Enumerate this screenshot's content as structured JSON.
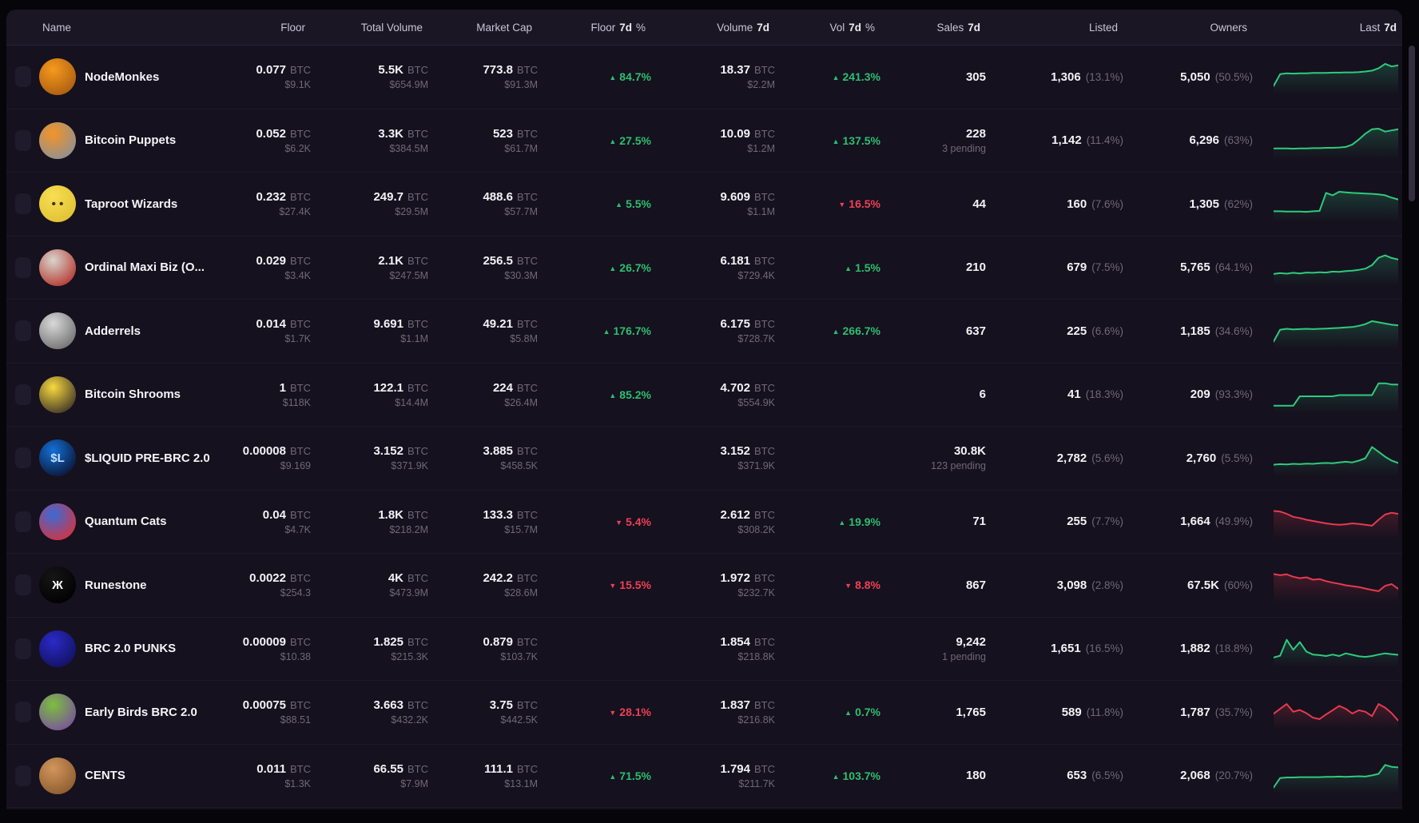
{
  "units": {
    "btc": "BTC"
  },
  "icons": {
    "up_arrow": "▲",
    "down_arrow": "▼",
    "sort": "sort-carets"
  },
  "colors": {
    "green_text": "#2dbe70",
    "red_text": "#ee4056",
    "spark_green": "#2fca7c",
    "spark_red": "#e63a4e",
    "panel_bg": "#15111e",
    "header_bg": "#1a1624"
  },
  "columns": [
    {
      "pre": "Floor",
      "bold": "",
      "post": "",
      "sortable": true,
      "active": null
    },
    {
      "pre": "Total Volume",
      "bold": "",
      "post": "",
      "sortable": true,
      "active": null
    },
    {
      "pre": "Market Cap",
      "bold": "",
      "post": "",
      "sortable": true,
      "active": null
    },
    {
      "pre": "Floor",
      "bold": "7d",
      "post": "%",
      "sortable": true,
      "active": null
    },
    {
      "pre": "Volume",
      "bold": "7d",
      "post": "",
      "sortable": true,
      "active": "down"
    },
    {
      "pre": "Vol",
      "bold": "7d",
      "post": "%",
      "sortable": true,
      "active": null
    },
    {
      "pre": "Sales",
      "bold": "7d",
      "post": "",
      "sortable": true,
      "active": null
    },
    {
      "pre": "Listed",
      "bold": "",
      "post": "",
      "sortable": true,
      "active": null
    },
    {
      "pre": "Owners",
      "bold": "",
      "post": "",
      "sortable": true,
      "active": null
    },
    {
      "pre": "Last",
      "bold": "7d",
      "post": "",
      "sortable": true,
      "active": null
    }
  ],
  "name_header": "Name",
  "rows": [
    {
      "name": "NodeMonkes",
      "avatar": {
        "c1": "#f6991d",
        "c2": "#a85c10",
        "glyph": "",
        "fg": "#3a2408"
      },
      "floor": {
        "val": "0.077",
        "usd": "$9.1K"
      },
      "tvol": {
        "val": "5.5K",
        "usd": "$654.9M"
      },
      "mcap": {
        "val": "773.8",
        "usd": "$91.3M"
      },
      "floor_pct": {
        "arrow": "▲",
        "value": "84.7%",
        "color": "up"
      },
      "vol7d": {
        "val": "18.37",
        "usd": "$2.2M"
      },
      "vol_pct": {
        "arrow": "▲",
        "value": "241.3%",
        "color": "up"
      },
      "sales": {
        "val": "305",
        "sub": ""
      },
      "listed": {
        "val": "1,306",
        "pct": "(13.1%)"
      },
      "owners": {
        "val": "5,050",
        "pct": "(50.5%)"
      },
      "spark": {
        "color": "#2fca7c",
        "points": [
          20,
          60,
          63,
          62,
          63,
          63,
          64,
          64,
          64,
          65,
          65,
          66,
          66,
          67,
          69,
          72,
          80,
          95,
          86,
          90
        ]
      }
    },
    {
      "name": "Bitcoin Puppets",
      "avatar": {
        "c1": "#f49426",
        "c2": "#8b9097",
        "glyph": "",
        "fg": "#fff"
      },
      "floor": {
        "val": "0.052",
        "usd": "$6.2K"
      },
      "tvol": {
        "val": "3.3K",
        "usd": "$384.5M"
      },
      "mcap": {
        "val": "523",
        "usd": "$61.7M"
      },
      "floor_pct": {
        "arrow": "▲",
        "value": "27.5%",
        "color": "up"
      },
      "vol7d": {
        "val": "10.09",
        "usd": "$1.2M"
      },
      "vol_pct": {
        "arrow": "▲",
        "value": "137.5%",
        "color": "up"
      },
      "sales": {
        "val": "228",
        "sub": "3 pending"
      },
      "listed": {
        "val": "1,142",
        "pct": "(11.4%)"
      },
      "owners": {
        "val": "6,296",
        "pct": "(63%)"
      },
      "spark": {
        "color": "#2fca7c",
        "points": [
          25,
          25,
          25,
          24,
          25,
          25,
          26,
          26,
          27,
          27,
          28,
          30,
          38,
          55,
          75,
          90,
          92,
          82,
          86,
          90
        ]
      }
    },
    {
      "name": "Taproot Wizards",
      "avatar": {
        "c1": "#f8df52",
        "c2": "#e0bf33",
        "glyph": "• •",
        "fg": "#3d3318"
      },
      "floor": {
        "val": "0.232",
        "usd": "$27.4K"
      },
      "tvol": {
        "val": "249.7",
        "usd": "$29.5M"
      },
      "mcap": {
        "val": "488.6",
        "usd": "$57.7M"
      },
      "floor_pct": {
        "arrow": "▲",
        "value": "5.5%",
        "color": "up"
      },
      "vol7d": {
        "val": "9.609",
        "usd": "$1.1M"
      },
      "vol_pct": {
        "arrow": "▼",
        "value": "16.5%",
        "color": "down"
      },
      "sales": {
        "val": "44",
        "sub": ""
      },
      "listed": {
        "val": "160",
        "pct": "(7.6%)"
      },
      "owners": {
        "val": "1,305",
        "pct": "(62%)"
      },
      "spark": {
        "color": "#2fca7c",
        "points": [
          26,
          26,
          25,
          25,
          25,
          24,
          26,
          27,
          88,
          80,
          92,
          90,
          88,
          87,
          86,
          85,
          83,
          80,
          72,
          66
        ]
      }
    },
    {
      "name": "Ordinal Maxi Biz (O...",
      "avatar": {
        "c1": "#d8d5cc",
        "c2": "#b3342c",
        "glyph": "",
        "fg": "#fff"
      },
      "floor": {
        "val": "0.029",
        "usd": "$3.4K"
      },
      "tvol": {
        "val": "2.1K",
        "usd": "$247.5M"
      },
      "mcap": {
        "val": "256.5",
        "usd": "$30.3M"
      },
      "floor_pct": {
        "arrow": "▲",
        "value": "26.7%",
        "color": "up"
      },
      "vol7d": {
        "val": "6.181",
        "usd": "$729.4K"
      },
      "vol_pct": {
        "arrow": "▲",
        "value": "1.5%",
        "color": "up"
      },
      "sales": {
        "val": "210",
        "sub": ""
      },
      "listed": {
        "val": "679",
        "pct": "(7.5%)"
      },
      "owners": {
        "val": "5,765",
        "pct": "(64.1%)"
      },
      "spark": {
        "color": "#2fca7c",
        "points": [
          30,
          33,
          31,
          34,
          32,
          35,
          34,
          36,
          35,
          38,
          37,
          40,
          41,
          44,
          48,
          60,
          85,
          93,
          84,
          79
        ]
      }
    },
    {
      "name": "Adderrels",
      "avatar": {
        "c1": "#d9d9d9",
        "c2": "#6e6e6e",
        "glyph": "",
        "fg": "#222"
      },
      "floor": {
        "val": "0.014",
        "usd": "$1.7K"
      },
      "tvol": {
        "val": "9.691",
        "usd": "$1.1M"
      },
      "mcap": {
        "val": "49.21",
        "usd": "$5.8M"
      },
      "floor_pct": {
        "arrow": "▲",
        "value": "176.7%",
        "color": "up"
      },
      "vol7d": {
        "val": "6.175",
        "usd": "$728.7K"
      },
      "vol_pct": {
        "arrow": "▲",
        "value": "266.7%",
        "color": "up"
      },
      "sales": {
        "val": "637",
        "sub": ""
      },
      "listed": {
        "val": "225",
        "pct": "(6.6%)"
      },
      "owners": {
        "val": "1,185",
        "pct": "(34.6%)"
      },
      "spark": {
        "color": "#2fca7c",
        "points": [
          15,
          55,
          58,
          56,
          57,
          58,
          57,
          58,
          59,
          60,
          61,
          63,
          64,
          68,
          74,
          84,
          80,
          76,
          72,
          70
        ]
      }
    },
    {
      "name": "Bitcoin Shrooms",
      "avatar": {
        "c1": "#f8d93e",
        "c2": "#3a3126",
        "glyph": "",
        "fg": "#fff"
      },
      "floor": {
        "val": "1",
        "usd": "$118K"
      },
      "tvol": {
        "val": "122.1",
        "usd": "$14.4M"
      },
      "mcap": {
        "val": "224",
        "usd": "$26.4M"
      },
      "floor_pct": {
        "arrow": "▲",
        "value": "85.2%",
        "color": "up"
      },
      "vol7d": {
        "val": "4.702",
        "usd": "$554.9K"
      },
      "vol_pct": null,
      "sales": {
        "val": "6",
        "sub": ""
      },
      "listed": {
        "val": "41",
        "pct": "(18.3%)"
      },
      "owners": {
        "val": "209",
        "pct": "(93.3%)"
      },
      "spark": {
        "color": "#2fca7c",
        "points": [
          14,
          14,
          14,
          14,
          46,
          46,
          46,
          46,
          46,
          46,
          50,
          50,
          50,
          50,
          50,
          50,
          90,
          90,
          86,
          86
        ]
      }
    },
    {
      "name": "$LIQUID PRE-BRC 2.0",
      "avatar": {
        "c1": "#1470d8",
        "c2": "#0a1330",
        "glyph": "$L",
        "fg": "#bfe0ff"
      },
      "floor": {
        "val": "0.00008",
        "usd": "$9.169"
      },
      "tvol": {
        "val": "3.152",
        "usd": "$371.9K"
      },
      "mcap": {
        "val": "3.885",
        "usd": "$458.5K"
      },
      "floor_pct": null,
      "vol7d": {
        "val": "3.152",
        "usd": "$371.9K"
      },
      "vol_pct": null,
      "sales": {
        "val": "30.8K",
        "sub": "123 pending"
      },
      "listed": {
        "val": "2,782",
        "pct": "(5.6%)"
      },
      "owners": {
        "val": "2,760",
        "pct": "(5.5%)"
      },
      "spark": {
        "color": "#2fca7c",
        "points": [
          28,
          30,
          29,
          31,
          30,
          32,
          31,
          33,
          34,
          33,
          36,
          38,
          36,
          42,
          50,
          88,
          72,
          55,
          42,
          34
        ]
      }
    },
    {
      "name": "Quantum Cats",
      "avatar": {
        "c1": "#3a6bd8",
        "c2": "#d8323c",
        "glyph": "",
        "fg": "#fff"
      },
      "floor": {
        "val": "0.04",
        "usd": "$4.7K"
      },
      "tvol": {
        "val": "1.8K",
        "usd": "$218.2M"
      },
      "mcap": {
        "val": "133.3",
        "usd": "$15.7M"
      },
      "floor_pct": {
        "arrow": "▼",
        "value": "5.4%",
        "color": "down"
      },
      "vol7d": {
        "val": "2.612",
        "usd": "$308.2K"
      },
      "vol_pct": {
        "arrow": "▲",
        "value": "19.9%",
        "color": "up"
      },
      "sales": {
        "val": "71",
        "sub": ""
      },
      "listed": {
        "val": "255",
        "pct": "(7.7%)"
      },
      "owners": {
        "val": "1,664",
        "pct": "(49.9%)"
      },
      "spark": {
        "color": "#e63a4e",
        "points": [
          88,
          86,
          78,
          68,
          64,
          58,
          54,
          50,
          46,
          43,
          41,
          43,
          46,
          44,
          41,
          38,
          58,
          76,
          82,
          78
        ]
      }
    },
    {
      "name": "Runestone",
      "avatar": {
        "c1": "#161616",
        "c2": "#000000",
        "glyph": "Ж",
        "fg": "#ffffff"
      },
      "floor": {
        "val": "0.0022",
        "usd": "$254.3"
      },
      "tvol": {
        "val": "4K",
        "usd": "$473.9M"
      },
      "mcap": {
        "val": "242.2",
        "usd": "$28.6M"
      },
      "floor_pct": {
        "arrow": "▼",
        "value": "15.5%",
        "color": "down"
      },
      "vol7d": {
        "val": "1.972",
        "usd": "$232.7K"
      },
      "vol_pct": {
        "arrow": "▼",
        "value": "8.8%",
        "color": "down"
      },
      "sales": {
        "val": "867",
        "sub": ""
      },
      "listed": {
        "val": "3,098",
        "pct": "(2.8%)"
      },
      "owners": {
        "val": "67.5K",
        "pct": "(60%)"
      },
      "spark": {
        "color": "#e63a4e",
        "points": [
          88,
          84,
          87,
          79,
          74,
          77,
          69,
          71,
          64,
          59,
          55,
          50,
          47,
          44,
          39,
          34,
          30,
          48,
          54,
          38
        ]
      }
    },
    {
      "name": "BRC 2.0 PUNKS",
      "avatar": {
        "c1": "#2a2ac8",
        "c2": "#11115e",
        "glyph": "",
        "fg": "#fff"
      },
      "floor": {
        "val": "0.00009",
        "usd": "$10.38"
      },
      "tvol": {
        "val": "1.825",
        "usd": "$215.3K"
      },
      "mcap": {
        "val": "0.879",
        "usd": "$103.7K"
      },
      "floor_pct": null,
      "vol7d": {
        "val": "1.854",
        "usd": "$218.8K"
      },
      "vol_pct": null,
      "sales": {
        "val": "9,242",
        "sub": "1 pending"
      },
      "listed": {
        "val": "1,651",
        "pct": "(16.5%)"
      },
      "owners": {
        "val": "1,882",
        "pct": "(18.8%)"
      },
      "spark": {
        "color": "#2fca7c",
        "points": [
          22,
          28,
          82,
          48,
          74,
          42,
          32,
          30,
          27,
          32,
          27,
          36,
          31,
          26,
          24,
          27,
          32,
          36,
          33,
          31
        ]
      }
    },
    {
      "name": "Early Birds BRC 2.0",
      "avatar": {
        "c1": "#7bbf3e",
        "c2": "#7a4f9e",
        "glyph": "",
        "fg": "#fff"
      },
      "floor": {
        "val": "0.00075",
        "usd": "$88.51"
      },
      "tvol": {
        "val": "3.663",
        "usd": "$432.2K"
      },
      "mcap": {
        "val": "3.75",
        "usd": "$442.5K"
      },
      "floor_pct": {
        "arrow": "▼",
        "value": "28.1%",
        "color": "down"
      },
      "vol7d": {
        "val": "1.837",
        "usd": "$216.8K"
      },
      "vol_pct": {
        "arrow": "▲",
        "value": "0.7%",
        "color": "up"
      },
      "sales": {
        "val": "1,765",
        "sub": ""
      },
      "listed": {
        "val": "589",
        "pct": "(11.8%)"
      },
      "owners": {
        "val": "1,787",
        "pct": "(35.7%)"
      },
      "spark": {
        "color": "#e63a4e",
        "points": [
          45,
          62,
          78,
          52,
          58,
          47,
          32,
          27,
          43,
          57,
          72,
          62,
          46,
          57,
          52,
          37,
          78,
          66,
          47,
          22
        ]
      }
    },
    {
      "name": "CENTS",
      "avatar": {
        "c1": "#d2955c",
        "c2": "#8a5a2e",
        "glyph": "",
        "fg": "#fff"
      },
      "floor": {
        "val": "0.011",
        "usd": "$1.3K"
      },
      "tvol": {
        "val": "66.55",
        "usd": "$7.9M"
      },
      "mcap": {
        "val": "111.1",
        "usd": "$13.1M"
      },
      "floor_pct": {
        "arrow": "▲",
        "value": "71.5%",
        "color": "up"
      },
      "vol7d": {
        "val": "1.794",
        "usd": "$211.7K"
      },
      "vol_pct": {
        "arrow": "▲",
        "value": "103.7%",
        "color": "up"
      },
      "sales": {
        "val": "180",
        "sub": ""
      },
      "listed": {
        "val": "653",
        "pct": "(6.5%)"
      },
      "owners": {
        "val": "2,068",
        "pct": "(20.7%)"
      },
      "spark": {
        "color": "#2fca7c",
        "points": [
          12,
          44,
          46,
          46,
          47,
          47,
          47,
          47,
          48,
          48,
          49,
          48,
          49,
          50,
          49,
          53,
          58,
          88,
          82,
          80
        ]
      }
    }
  ]
}
